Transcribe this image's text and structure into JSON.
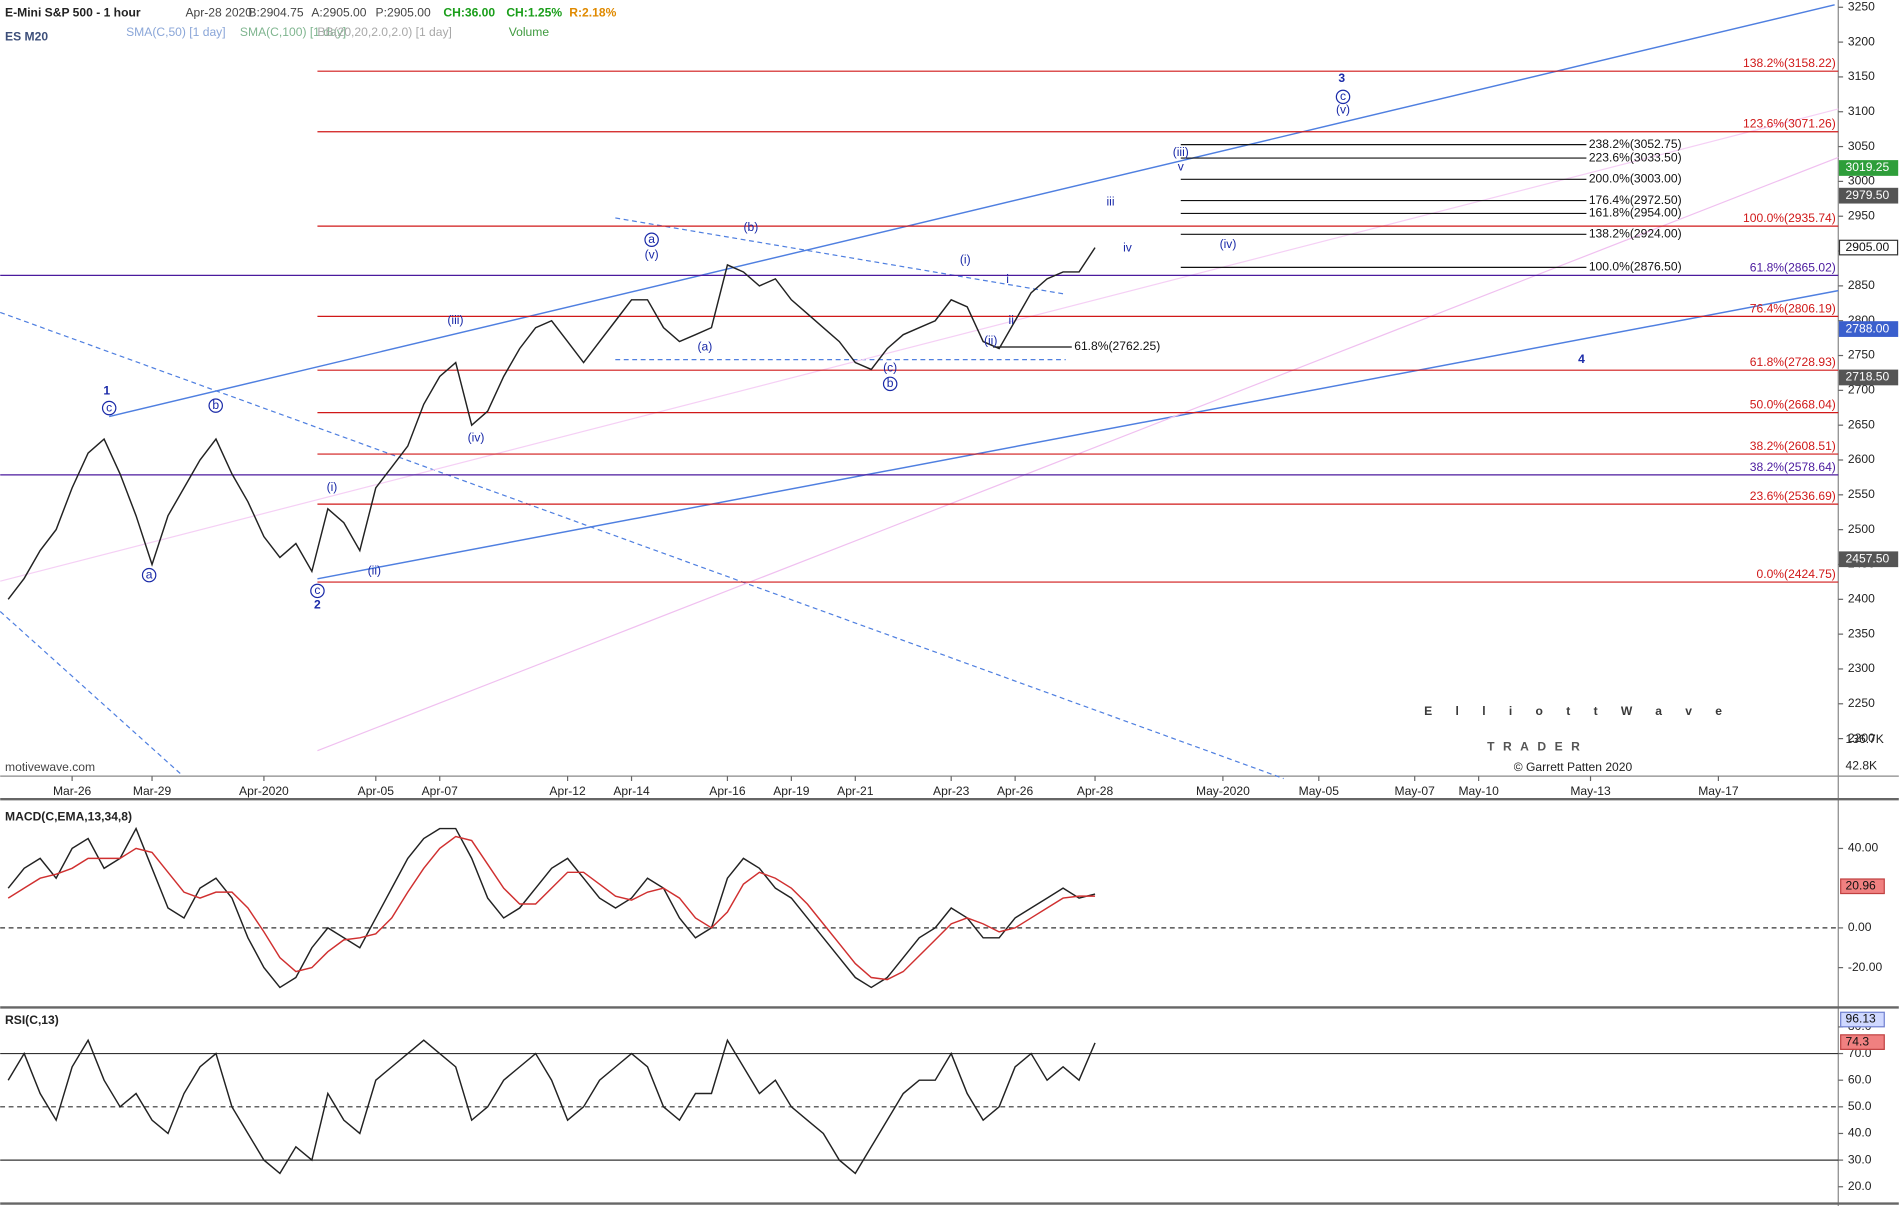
{
  "header": {
    "instrument": "E-Mini S&P 500 - 1 hour",
    "symbol": "ES M20",
    "info": [
      {
        "text": "Apr-28 2020",
        "color": "#444"
      },
      {
        "text": "B:2904.75",
        "color": "#444"
      },
      {
        "text": "A:2905.00",
        "color": "#444"
      },
      {
        "text": "P:2905.00",
        "color": "#444"
      },
      {
        "text": "CH:36.00",
        "color": "#1a9e1a"
      },
      {
        "text": "CH:1.25%",
        "color": "#1a9e1a"
      },
      {
        "text": "R:2.18%",
        "color": "#e08a00"
      }
    ],
    "studies": [
      {
        "text": "SMA(C,50) [1 day]",
        "color": "#8aa6d8"
      },
      {
        "text": "SMA(C,100) [1 day]",
        "color": "#7fb58f"
      },
      {
        "text": "BB(20,20,2.0,2.0) [1 day]",
        "color": "#a8a8a8"
      },
      {
        "text": "Volume",
        "color": "#3f9a3f"
      }
    ]
  },
  "wave_labels": [
    "1",
    "c",
    "a",
    "b",
    "c",
    "2",
    "(i)",
    "(ii)",
    "(iii)",
    "(iv)",
    "a",
    "(v)",
    "(a)",
    "(b)",
    "(c)",
    "b",
    "(i)",
    "(ii)",
    "i",
    "ii",
    "iii",
    "iv",
    "(iii)",
    "v",
    "(iv)",
    "3",
    "c",
    "(v)",
    "4"
  ],
  "logo": {
    "name": "ElliottWave",
    "tagline": "TRADER",
    "credit": "© Garrett Patten 2020"
  },
  "watermark": "motivewave.com",
  "volume_labels": [
    "136.7K",
    "42.8K"
  ],
  "chart_data": [
    {
      "type": "line",
      "categories": [
        null,
        null,
        null,
        null,
        "Mar-26",
        null,
        null,
        null,
        null,
        "Mar-29",
        null,
        null,
        null,
        null,
        null,
        null,
        "Apr-2020",
        null,
        null,
        null,
        null,
        null,
        null,
        "Apr-05",
        null,
        null,
        null,
        "Apr-07",
        null,
        null,
        null,
        null,
        null,
        null,
        null,
        "Apr-12",
        null,
        null,
        null,
        "Apr-14",
        null,
        null,
        null,
        null,
        null,
        "Apr-16",
        null,
        null,
        null,
        "Apr-19",
        null,
        null,
        null,
        "Apr-21",
        null,
        null,
        null,
        null,
        null,
        "Apr-23",
        null,
        null,
        null,
        "Apr-26",
        null,
        null,
        null,
        null,
        "Apr-28",
        null,
        null,
        null,
        null,
        null,
        null,
        null,
        "May-2020",
        null,
        null,
        null,
        null,
        null,
        "May-05",
        null,
        null,
        null,
        null,
        null,
        "May-07",
        null,
        null,
        null,
        "May-10",
        null,
        null,
        null,
        null,
        null,
        null,
        "May-13",
        null,
        null,
        null,
        null,
        null,
        null,
        null,
        "May-17",
        null,
        null,
        null,
        null,
        null,
        null,
        null
      ],
      "series": [
        {
          "color": "#222222",
          "values": [
            2400,
            2430,
            2470,
            2500,
            2560,
            2610,
            2630,
            2580,
            2520,
            2450,
            2520,
            2560,
            2600,
            2630,
            2580,
            2540,
            2490,
            2460,
            2480,
            2440,
            2530,
            2510,
            2470,
            2560,
            2590,
            2620,
            2680,
            2720,
            2740,
            2650,
            2670,
            2720,
            2760,
            2790,
            2800,
            2770,
            2740,
            2770,
            2800,
            2830,
            2830,
            2790,
            2770,
            2780,
            2790,
            2880,
            2870,
            2850,
            2860,
            2830,
            2810,
            2790,
            2770,
            2740,
            2730,
            2760,
            2780,
            2790,
            2800,
            2830,
            2820,
            2770,
            2760,
            2800,
            2840,
            2860,
            2870,
            2870,
            2905,
            null,
            null,
            null,
            null,
            null,
            null,
            null,
            null,
            null,
            null,
            null,
            null,
            null,
            null,
            null,
            null,
            null,
            null,
            null,
            null,
            null,
            null,
            null,
            null,
            null,
            null,
            null,
            null,
            null,
            null,
            null,
            null,
            null,
            null,
            null,
            null,
            null,
            null,
            null,
            null,
            null,
            null,
            null,
            null,
            null,
            null
          ]
        }
      ],
      "ylim": [
        2200,
        3250
      ],
      "yticks": [
        2200,
        2250,
        2300,
        2350,
        2400,
        2450,
        2500,
        2550,
        2600,
        2650,
        2700,
        2750,
        2800,
        2850,
        2900,
        2950,
        3000,
        3050,
        3100,
        3150,
        3200,
        3250
      ],
      "retracement_levels": [
        {
          "value": 3158.22,
          "label": "138.2%(3158.22)"
        },
        {
          "value": 3071.26,
          "label": "123.6%(3071.26)"
        },
        {
          "value": 2935.74,
          "label": "100.0%(2935.74)"
        },
        {
          "value": 2806.19,
          "label": "76.4%(2806.19)"
        },
        {
          "value": 2728.93,
          "label": "61.8%(2728.93)"
        },
        {
          "value": 2668.04,
          "label": "50.0%(2668.04)"
        },
        {
          "value": 2608.51,
          "label": "38.2%(2608.51)"
        },
        {
          "value": 2536.69,
          "label": "23.6%(2536.69)"
        },
        {
          "value": 2424.75,
          "label": "0.0%(2424.75)"
        }
      ],
      "retracement_color": "#d01818",
      "extension_levels": [
        {
          "value": 2865.02,
          "label": "61.8%(2865.02)"
        },
        {
          "value": 2578.64,
          "label": "38.2%(2578.64)"
        }
      ],
      "extension_color": "#4b1a9e",
      "projection_levels": [
        {
          "value": 3052.75,
          "label": "238.2%(3052.75)"
        },
        {
          "value": 3033.5,
          "label": "223.6%(3033.50)"
        },
        {
          "value": 3003,
          "label": "200.0%(3003.00)"
        },
        {
          "value": 2972.5,
          "label": "176.4%(2972.50)"
        },
        {
          "value": 2954,
          "label": "161.8%(2954.00)"
        },
        {
          "value": 2924,
          "label": "138.2%(2924.00)"
        },
        {
          "value": 2876.5,
          "label": "100.0%(2876.50)"
        }
      ],
      "minor_levels": [
        {
          "value": 2762.25,
          "label": "61.8%(2762.25)"
        }
      ],
      "axis_markers": [
        {
          "value": 3019.25,
          "label": "3019.25",
          "color": "#2e9e3a"
        },
        {
          "value": 2979.5,
          "label": "2979.50",
          "color": "#555555"
        },
        {
          "value": 2905,
          "label": "2905.00",
          "color": "#ffffff"
        },
        {
          "value": 2788,
          "label": "2788.00",
          "color": "#3a5fcd"
        },
        {
          "value": 2718.5,
          "label": "2718.50",
          "color": "#555555"
        },
        {
          "value": 2457.5,
          "label": "2457.50",
          "color": "#555555"
        }
      ]
    },
    {
      "type": "line",
      "title": "MACD(C,EMA,13,34,8)",
      "series": [
        {
          "color": "#222222",
          "values": [
            20,
            30,
            35,
            25,
            40,
            45,
            30,
            35,
            50,
            30,
            10,
            5,
            20,
            25,
            15,
            -5,
            -20,
            -30,
            -25,
            -10,
            0,
            -5,
            -10,
            5,
            20,
            35,
            45,
            50,
            50,
            35,
            15,
            5,
            10,
            20,
            30,
            35,
            25,
            15,
            10,
            15,
            25,
            20,
            5,
            -5,
            0,
            25,
            35,
            30,
            20,
            15,
            5,
            -5,
            -15,
            -25,
            -30,
            -25,
            -15,
            -5,
            0,
            10,
            5,
            -5,
            -5,
            5,
            10,
            15,
            20,
            15,
            17
          ]
        },
        {
          "color": "#d03030",
          "values": [
            15,
            20,
            25,
            27,
            30,
            35,
            35,
            35,
            40,
            38,
            28,
            18,
            15,
            18,
            18,
            10,
            -2,
            -15,
            -22,
            -20,
            -12,
            -6,
            -5,
            -3,
            5,
            18,
            30,
            40,
            46,
            44,
            32,
            20,
            12,
            12,
            20,
            28,
            28,
            22,
            16,
            14,
            18,
            20,
            15,
            5,
            0,
            8,
            22,
            28,
            25,
            20,
            12,
            2,
            -8,
            -18,
            -25,
            -26,
            -22,
            -14,
            -6,
            2,
            5,
            2,
            -2,
            0,
            5,
            10,
            15,
            16,
            16
          ]
        }
      ],
      "ylim": [
        -37.6,
        63.6
      ],
      "yticks": [
        {
          "value": 40,
          "label": "40.00"
        },
        {
          "value": 0,
          "label": "0.00"
        },
        {
          "value": -20,
          "label": "-20.00"
        }
      ],
      "reference_lines": [
        0
      ],
      "last_value": 20.96
    },
    {
      "type": "line",
      "title": "RSI(C,13)",
      "series": [
        {
          "color": "#222222",
          "values": [
            60,
            70,
            55,
            45,
            65,
            75,
            60,
            50,
            55,
            45,
            40,
            55,
            65,
            70,
            50,
            40,
            30,
            25,
            35,
            30,
            55,
            45,
            40,
            60,
            65,
            70,
            75,
            70,
            65,
            45,
            50,
            60,
            65,
            70,
            60,
            45,
            50,
            60,
            65,
            70,
            65,
            50,
            45,
            55,
            55,
            75,
            65,
            55,
            60,
            50,
            45,
            40,
            30,
            25,
            35,
            45,
            55,
            60,
            60,
            70,
            55,
            45,
            50,
            65,
            70,
            60,
            65,
            60,
            74
          ]
        }
      ],
      "ylim": [
        15.5,
        85.5
      ],
      "yticks": [
        {
          "value": 20,
          "label": "20.0"
        },
        {
          "value": 30,
          "label": "30.0"
        },
        {
          "value": 40,
          "label": "40.0"
        },
        {
          "value": 50,
          "label": "50.0"
        },
        {
          "value": 60,
          "label": "60.0"
        },
        {
          "value": 70,
          "label": "70.0"
        },
        {
          "value": 80,
          "label": "80.0"
        }
      ],
      "reference_lines": [
        70,
        50,
        30
      ],
      "last_value": 74.3,
      "stoch_value": 96.13
    }
  ]
}
